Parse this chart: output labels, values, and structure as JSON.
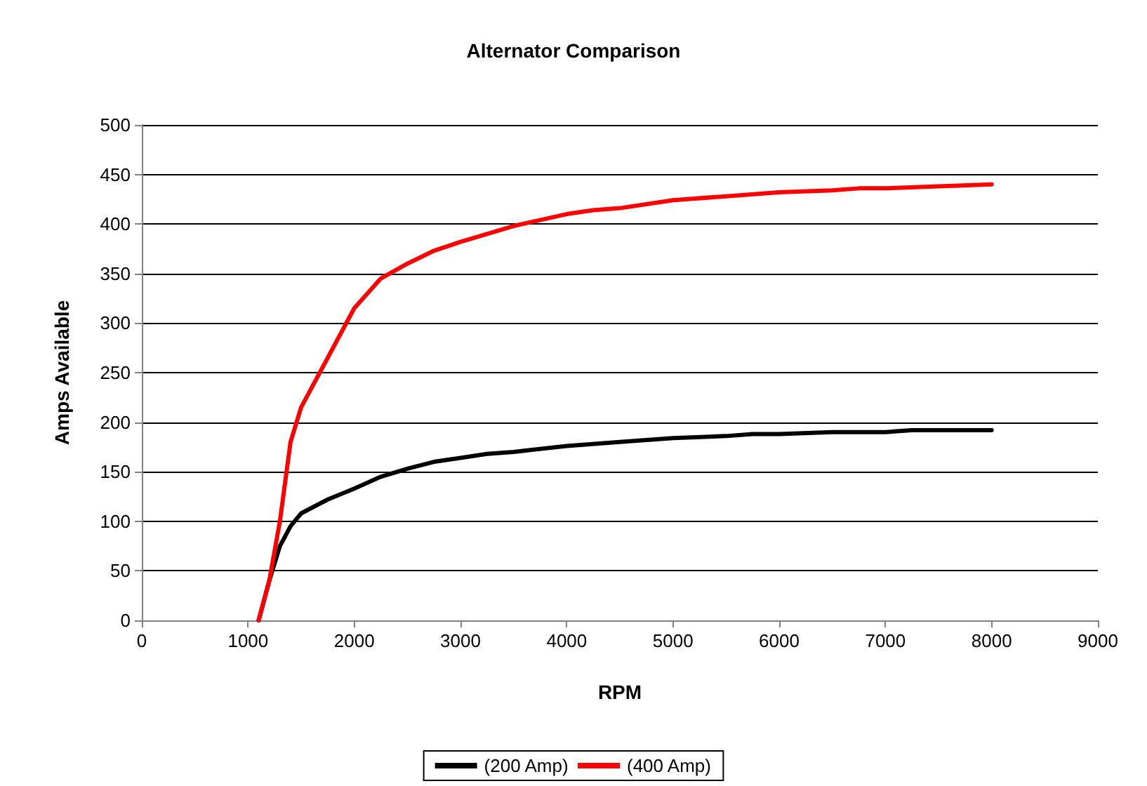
{
  "chart_data": {
    "type": "line",
    "title": "Alternator Comparison",
    "xlabel": "RPM",
    "ylabel": "Amps Available",
    "xlim": [
      0,
      9000
    ],
    "xticks": [
      0,
      1000,
      2000,
      3000,
      4000,
      5000,
      6000,
      7000,
      8000,
      9000
    ],
    "ylim": [
      0,
      500
    ],
    "yticks": [
      0,
      50,
      100,
      150,
      200,
      250,
      300,
      350,
      400,
      450,
      500
    ],
    "grid": "y",
    "legend": "bottom",
    "marker": "none",
    "line_style": "solid",
    "series": [
      {
        "name": "(200 Amp)",
        "color": "#000000",
        "x": [
          1100,
          1200,
          1300,
          1400,
          1500,
          1750,
          2000,
          2250,
          2500,
          2750,
          3000,
          3250,
          3500,
          4000,
          4500,
          5000,
          5500,
          5750,
          6000,
          6500,
          7000,
          7250,
          8000
        ],
        "values": [
          0,
          40,
          75,
          95,
          108,
          122,
          133,
          145,
          153,
          160,
          164,
          168,
          170,
          176,
          180,
          184,
          186,
          188,
          188,
          190,
          190,
          192,
          192
        ]
      },
      {
        "name": "(400 Amp)",
        "color": "#ff0000",
        "x": [
          1100,
          1200,
          1300,
          1400,
          1500,
          1750,
          2000,
          2250,
          2500,
          2750,
          3000,
          3500,
          4000,
          4250,
          4500,
          5000,
          5500,
          6000,
          6500,
          6750,
          7000,
          7500,
          8000
        ],
        "values": [
          0,
          40,
          100,
          180,
          215,
          265,
          315,
          345,
          360,
          373,
          382,
          398,
          410,
          414,
          416,
          424,
          428,
          432,
          434,
          436,
          436,
          438,
          440
        ]
      }
    ]
  }
}
